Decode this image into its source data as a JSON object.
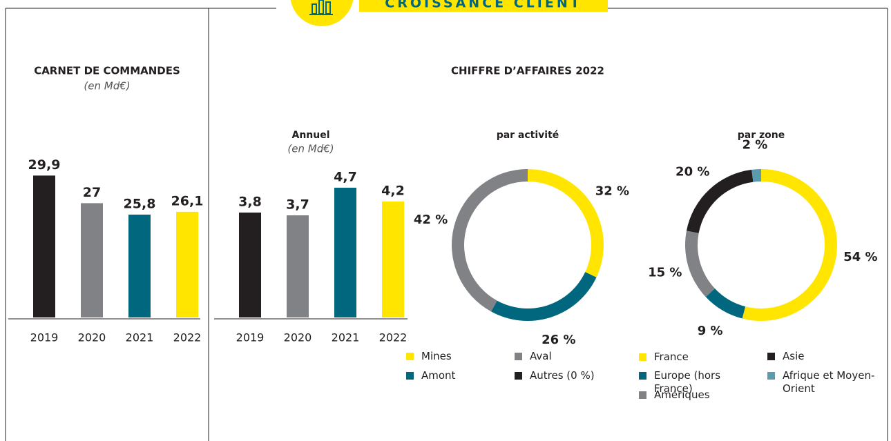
{
  "header": {
    "title": "CROISSANCE CLIENT"
  },
  "revenue_section": {
    "title": "CHIFFRE D’AFFAIRES 2022"
  },
  "chart_data": [
    {
      "type": "bar",
      "title": "CARNET DE COMMANDES",
      "subtitle": "(en Md€)",
      "categories": [
        "2019",
        "2020",
        "2021",
        "2022"
      ],
      "values": [
        29.9,
        27,
        25.8,
        26.1
      ],
      "value_labels": [
        "29,9",
        "27",
        "25,8",
        "26,1"
      ],
      "colors": [
        "#231f20",
        "#818286",
        "#00677f",
        "#ffe500"
      ],
      "ylim": [
        15,
        30
      ]
    },
    {
      "type": "bar",
      "title": "Annuel",
      "subtitle": "(en Md€)",
      "categories": [
        "2019",
        "2020",
        "2021",
        "2022"
      ],
      "values": [
        3.8,
        3.7,
        4.7,
        4.2
      ],
      "value_labels": [
        "3,8",
        "3,7",
        "4,7",
        "4,2"
      ],
      "colors": [
        "#231f20",
        "#818286",
        "#00677f",
        "#ffe500"
      ],
      "ylim": [
        0,
        5
      ]
    },
    {
      "type": "pie",
      "title": "par activité",
      "categories": [
        "Mines",
        "Amont",
        "Aval",
        "Autres (0 %)"
      ],
      "values": [
        32,
        26,
        42,
        0
      ],
      "value_labels": [
        "32 %",
        "26 %",
        "42 %",
        null
      ],
      "colors": [
        "#ffe500",
        "#00677f",
        "#818286",
        "#231f20"
      ]
    },
    {
      "type": "pie",
      "title": "par zone",
      "categories": [
        "France",
        "Europe (hors France)",
        "Amériques",
        "Asie",
        "Afrique et Moyen-Orient"
      ],
      "values": [
        54,
        9,
        15,
        20,
        2
      ],
      "value_labels": [
        "54 %",
        "9 %",
        "15 %",
        "20 %",
        "2 %"
      ],
      "colors": [
        "#ffe500",
        "#00677f",
        "#818286",
        "#231f20",
        "#5a9bb0"
      ]
    }
  ]
}
